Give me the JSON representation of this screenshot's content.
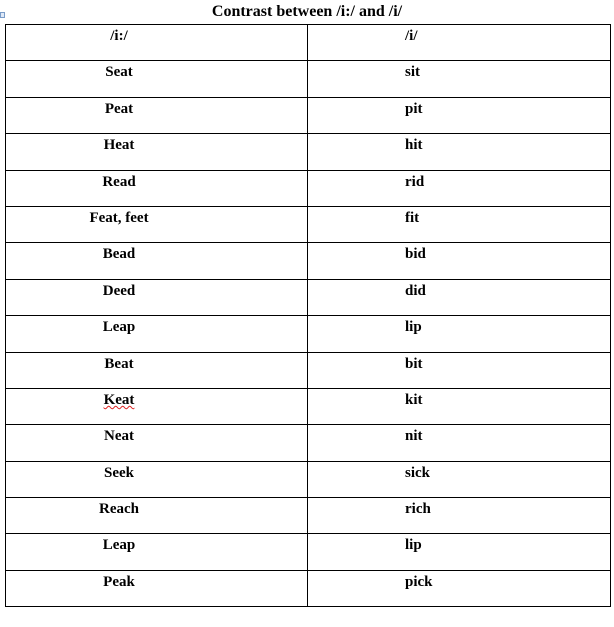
{
  "title": "Contrast between /i:/ and /i/",
  "headers": [
    "/i:/",
    "/i/"
  ],
  "rows": [
    [
      "Seat",
      "sit"
    ],
    [
      "Peat",
      "pit"
    ],
    [
      "Heat",
      "hit"
    ],
    [
      "Read",
      "rid"
    ],
    [
      "Feat, feet",
      "fit"
    ],
    [
      "Bead",
      "bid"
    ],
    [
      "Deed",
      "did"
    ],
    [
      "Leap",
      "lip"
    ],
    [
      "Beat",
      "bit"
    ],
    [
      "Keat",
      "kit"
    ],
    [
      "Neat",
      "nit"
    ],
    [
      "Seek",
      "sick"
    ],
    [
      "Reach",
      "rich"
    ],
    [
      "Leap",
      "lip"
    ],
    [
      "Peak",
      "pick"
    ]
  ]
}
